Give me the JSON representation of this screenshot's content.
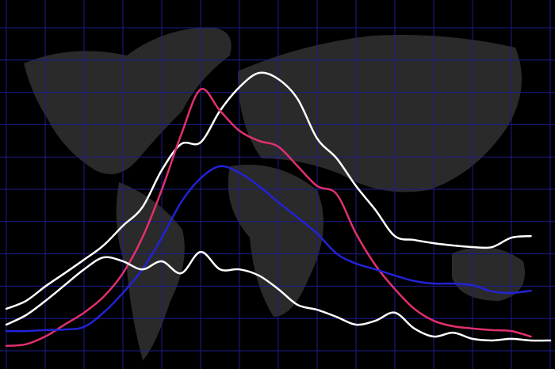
{
  "chart_data": {
    "type": "line",
    "x": [
      0,
      0.5,
      1,
      1.5,
      2,
      2.5,
      3,
      3.5,
      4,
      4.5,
      5,
      5.5,
      6,
      6.5,
      7,
      7.5,
      8,
      8.5,
      9,
      9.5,
      10,
      10.5,
      11,
      11.5,
      12,
      12.5,
      13,
      13.5,
      14
    ],
    "series": [
      {
        "color": "#ffffff",
        "values": [
          13,
          15.4,
          19.9,
          24,
          28.2,
          32.6,
          38.7,
          44.4,
          55.9,
          64,
          64.5,
          74.3,
          81.6,
          86,
          84.1,
          77.9,
          65.7,
          59.6,
          51,
          43.6,
          35.5,
          34.3,
          33.3,
          32.6,
          32.1,
          32.1,
          35,
          35.5,
          null
        ]
      },
      {
        "color": "#e0306f",
        "values": [
          1.5,
          2,
          4.4,
          8.1,
          11.8,
          16.7,
          24,
          35,
          49.8,
          66.9,
          80.9,
          74.3,
          68.1,
          65,
          63.2,
          57.1,
          51,
          48.5,
          36.3,
          26.5,
          19.1,
          13,
          9.3,
          7.6,
          6.9,
          6.4,
          6.1,
          4.4,
          null
        ]
      },
      {
        "color": "#2222d6",
        "values": [
          6.1,
          6.1,
          6.4,
          6.6,
          7.4,
          11.8,
          17.9,
          25.2,
          35,
          46,
          53.4,
          57.1,
          55.1,
          51,
          46,
          41.2,
          36.3,
          30.1,
          27,
          25.2,
          23.3,
          21.6,
          20.8,
          20.8,
          20.3,
          18.4,
          17.9,
          18.6,
          null
        ]
      },
      {
        "color": "#ffffff",
        "values": [
          8.1,
          11,
          15.4,
          20.3,
          25.2,
          28.9,
          27.7,
          25.2,
          27.7,
          24,
          30.6,
          25.2,
          25.2,
          23.3,
          19.1,
          14.2,
          12.7,
          10.5,
          8.1,
          9.3,
          11.8,
          6.9,
          4.4,
          5.6,
          3.7,
          3.2,
          3.7,
          3.2,
          3.2
        ]
      }
    ],
    "xlim": [
      0,
      14
    ],
    "xticks": [
      0,
      1,
      2,
      3,
      4,
      5,
      6,
      7,
      8,
      9,
      10,
      11,
      12,
      13,
      14
    ],
    "ylim": [
      0,
      100
    ],
    "yticks": [
      0,
      10,
      20,
      30,
      40,
      50,
      60,
      70,
      80,
      90,
      100
    ],
    "grid": true,
    "grid_color": "#1c1c8c"
  }
}
